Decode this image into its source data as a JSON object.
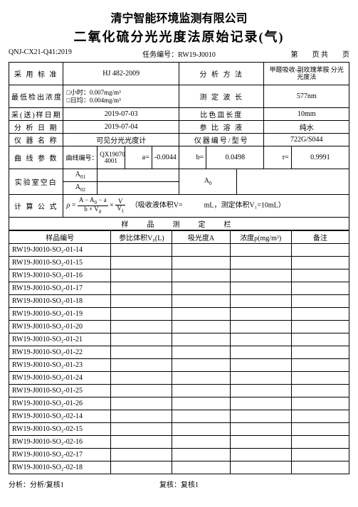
{
  "company": "清宁智能环境监测有限公司",
  "title": "二氧化硫分光光度法原始记录(气)",
  "doc_code": "QNJ-CX21-Q41:2019",
  "task_no_label": "任务编号：",
  "task_no": "RW19-J0010",
  "page_text": "第　　页 共　　页",
  "r1c1": "采 用 标 准",
  "r1c2": "HJ 482-2009",
  "r1c3": "分 析 方 法",
  "r1c4": "甲醛吸收-副玫瑰苯胺\n分光光度法",
  "r2c1": "最低检出浓度",
  "r2c2a": "□小时：0.007mg/m³",
  "r2c2b": "□日均：0.004mg/m³",
  "r2c3": "测 定 波 长",
  "r2c4": "577nm",
  "r3c1": "采(送)样日期",
  "r3c2": "2019-07-03",
  "r3c3": "比色皿长度",
  "r3c4": "10mm",
  "r4c1": "分 析 日 期",
  "r4c2": "2019-07-04",
  "r4c3": "参 比 溶 液",
  "r4c4": "纯水",
  "r5c1": "仪 器 名 称",
  "r5c2": "可见分光光度计",
  "r5c3": "仪器编号/型号",
  "r5c4": "722G/S044",
  "r6c1": "曲 线 参 数",
  "r6c2l": "曲线编号：",
  "r6c2v": "QX19070\n4001",
  "r6a": "a=",
  "r6av": "-0.0044",
  "r6b": "b=",
  "r6bv": "0.0498",
  "r6r": "r=",
  "r6rv": "0.9991",
  "r7c1": "实验室空白",
  "r7a01": "A₀₁",
  "r7a02": "A₀₂",
  "r7a0": "A₀",
  "r8c1": "计 算 公 式",
  "r8note": "（吸收液体积V=　　　mL，测定体积V₁=10mL）",
  "section": "样　品　测　定　栏",
  "h1": "样品编号",
  "h2": "参比体积V₀(L)",
  "h3": "吸光度A",
  "h4": "浓度ρ(mg/m³)",
  "h5": "备注",
  "rows": [
    "RW19-J0010-SO₂-01-14",
    "RW19-J0010-SO₂-01-15",
    "RW19-J0010-SO₂-01-16",
    "RW19-J0010-SO₂-01-17",
    "RW19-J0010-SO₂-01-18",
    "RW19-J0010-SO₂-01-19",
    "RW19-J0010-SO₂-01-20",
    "RW19-J0010-SO₂-01-21",
    "RW19-J0010-SO₂-01-22",
    "RW19-J0010-SO₂-01-23",
    "RW19-J0010-SO₂-01-24",
    "RW19-J0010-SO₂-01-25",
    "RW19-J0010-SO₂-01-26",
    "RW19-J0010-SO₂-02-14",
    "RW19-J0010-SO₂-02-15",
    "RW19-J0010-SO₂-02-16",
    "RW19-J0010-SO₂-02-17",
    "RW19-J0010-SO₂-02-18"
  ],
  "foot_l": "分析：分析/复核1",
  "foot_r": "复核：复核1"
}
